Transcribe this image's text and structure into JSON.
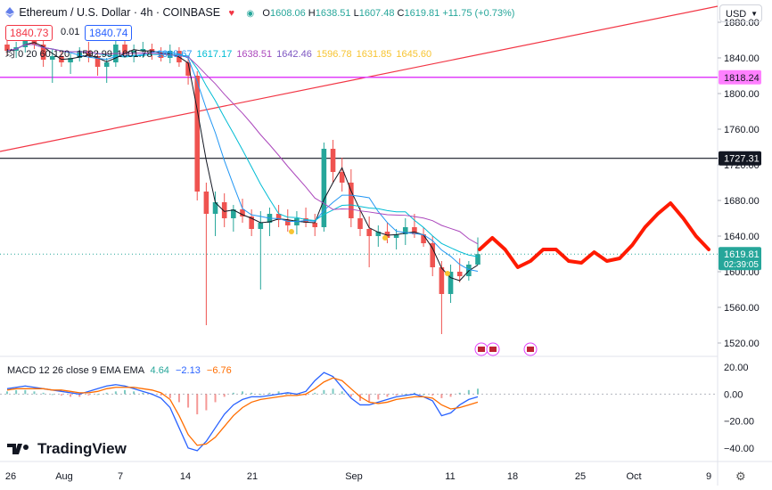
{
  "header": {
    "symbol_title": "Ethereum / U.S. Dollar · 4h · COINBASE",
    "open_label": "O",
    "open": "1608.06",
    "high_label": "H",
    "high": "1638.51",
    "low_label": "L",
    "low": "1607.48",
    "close_label": "C",
    "close": "1619.81",
    "change": "+11.75 (+0.73%)",
    "sell_price": "1840.73",
    "spread": "0.01",
    "buy_price": "1840.74",
    "currency": "USD"
  },
  "ma_legend": {
    "prefix": "均",
    "params": "0 20 60 120",
    "values": [
      "1592.99",
      "1601.78",
      "1618.67",
      "1617.17",
      "1638.51",
      "1642.46",
      "1596.78",
      "1631.85",
      "1645.60"
    ],
    "colors": [
      "#131722",
      "#131722",
      "#2196f3",
      "#00bcd4",
      "#ab47bc",
      "#7e57c2",
      "#f7c431",
      "#f7c431",
      "#f7c431"
    ]
  },
  "macd_legend": {
    "title": "MACD 12 26 close 9 EMA EMA",
    "hist": "4.64",
    "macd": "−2.13",
    "signal": "−6.76"
  },
  "watermark": "TradingView",
  "price_axis": {
    "ticks": [
      "1880.00",
      "1840.00",
      "1800.00",
      "1760.00",
      "1720.00",
      "1680.00",
      "1640.00",
      "1600.00",
      "1560.00",
      "1520.00"
    ],
    "tag_pink": "1818.24",
    "tag_black": "1727.31",
    "tag_last": "1619.81",
    "tag_countdown": "02:39:05"
  },
  "macd_axis": {
    "ticks": [
      "20.00",
      "0.00",
      "−20.00",
      "−40.00"
    ]
  },
  "time_axis": {
    "ticks": [
      "26",
      "Aug",
      "7",
      "14",
      "21",
      "Sep",
      "11",
      "18",
      "25",
      "Oct",
      "9"
    ]
  },
  "colors": {
    "up": "#26a69a",
    "down": "#ef5350",
    "pink_line": "#e040fb",
    "trend_line": "#f23645",
    "forecast": "#ff1a00",
    "macd_line": "#2962ff",
    "signal_line": "#ff6d00"
  },
  "chart_data": {
    "type": "candlestick",
    "symbol": "ETHUSD",
    "timeframe": "4h",
    "ylim": [
      1505,
      1905
    ],
    "candles_ohlc": [
      [
        1855,
        1862,
        1843,
        1848
      ],
      [
        1848,
        1858,
        1840,
        1852
      ],
      [
        1852,
        1870,
        1846,
        1865
      ],
      [
        1865,
        1868,
        1850,
        1855
      ],
      [
        1855,
        1862,
        1830,
        1838
      ],
      [
        1838,
        1850,
        1812,
        1842
      ],
      [
        1842,
        1848,
        1830,
        1835
      ],
      [
        1835,
        1845,
        1822,
        1840
      ],
      [
        1840,
        1852,
        1836,
        1848
      ],
      [
        1848,
        1858,
        1835,
        1842
      ],
      [
        1842,
        1848,
        1820,
        1830
      ],
      [
        1830,
        1840,
        1812,
        1835
      ],
      [
        1835,
        1860,
        1830,
        1855
      ],
      [
        1855,
        1866,
        1840,
        1845
      ],
      [
        1845,
        1855,
        1835,
        1848
      ],
      [
        1848,
        1858,
        1840,
        1850
      ],
      [
        1850,
        1856,
        1838,
        1846
      ],
      [
        1846,
        1852,
        1836,
        1840
      ],
      [
        1840,
        1855,
        1834,
        1848
      ],
      [
        1848,
        1852,
        1830,
        1835
      ],
      [
        1835,
        1842,
        1810,
        1820
      ],
      [
        1820,
        1825,
        1680,
        1690
      ],
      [
        1690,
        1700,
        1540,
        1665
      ],
      [
        1665,
        1690,
        1640,
        1678
      ],
      [
        1678,
        1688,
        1650,
        1660
      ],
      [
        1660,
        1675,
        1645,
        1670
      ],
      [
        1670,
        1682,
        1655,
        1662
      ],
      [
        1662,
        1670,
        1640,
        1648
      ],
      [
        1648,
        1668,
        1580,
        1655
      ],
      [
        1655,
        1672,
        1640,
        1665
      ],
      [
        1665,
        1675,
        1650,
        1658
      ],
      [
        1658,
        1670,
        1645,
        1652
      ],
      [
        1652,
        1668,
        1642,
        1660
      ],
      [
        1660,
        1672,
        1650,
        1655
      ],
      [
        1655,
        1665,
        1640,
        1650
      ],
      [
        1650,
        1745,
        1645,
        1738
      ],
      [
        1738,
        1748,
        1700,
        1712
      ],
      [
        1712,
        1728,
        1690,
        1700
      ],
      [
        1700,
        1715,
        1650,
        1660
      ],
      [
        1660,
        1672,
        1640,
        1648
      ],
      [
        1648,
        1662,
        1605,
        1640
      ],
      [
        1640,
        1652,
        1628,
        1645
      ],
      [
        1645,
        1655,
        1632,
        1638
      ],
      [
        1638,
        1648,
        1625,
        1642
      ],
      [
        1642,
        1660,
        1630,
        1650
      ],
      [
        1650,
        1665,
        1638,
        1642
      ],
      [
        1642,
        1650,
        1628,
        1632
      ],
      [
        1632,
        1640,
        1595,
        1605
      ],
      [
        1605,
        1612,
        1530,
        1575
      ],
      [
        1575,
        1608,
        1565,
        1600
      ],
      [
        1600,
        1615,
        1588,
        1595
      ],
      [
        1595,
        1612,
        1590,
        1608
      ],
      [
        1608,
        1638.51,
        1607.48,
        1619.81
      ]
    ],
    "ma_lines": {
      "ma20_colors": "#131722",
      "ma60_color": "#2196f3",
      "ma120_color": "#ab47bc"
    },
    "horizontal_levels": [
      1818.24,
      1727.31
    ],
    "last_price": 1619.81,
    "forecast_path_note": "hand-drawn red projection after last candle",
    "forecast_values": [
      1625,
      1638,
      1625,
      1605,
      1612,
      1625,
      1625,
      1612,
      1610,
      1622,
      1612,
      1615,
      1630,
      1650,
      1665,
      1677,
      1660,
      1640,
      1625
    ],
    "macd": {
      "ylim": [
        -48,
        26
      ],
      "hist": [
        2,
        3,
        3,
        2,
        1,
        0,
        -1,
        -2,
        -2,
        -1,
        0,
        1,
        2,
        3,
        2,
        1,
        0,
        -1,
        -3,
        -6,
        -10,
        -15,
        -12,
        -6,
        -2,
        1,
        2,
        1,
        0,
        1,
        2,
        1,
        0,
        -1,
        1,
        3,
        4,
        2,
        -2,
        -5,
        -6,
        -4,
        -2,
        -1,
        0,
        1,
        0,
        -1,
        -3,
        -2,
        1,
        3,
        4
      ],
      "macd_line": [
        4,
        5,
        6,
        5,
        4,
        3,
        2,
        1,
        0,
        2,
        4,
        6,
        7,
        6,
        4,
        2,
        0,
        -3,
        -10,
        -25,
        -40,
        -42,
        -35,
        -25,
        -15,
        -8,
        -4,
        -2,
        -2,
        -1,
        0,
        1,
        0,
        2,
        10,
        16,
        13,
        5,
        -3,
        -8,
        -8,
        -6,
        -4,
        -2,
        -1,
        0,
        -2,
        -5,
        -16,
        -14,
        -8,
        -4,
        -2
      ],
      "signal_line": [
        3,
        4,
        4,
        4,
        4,
        3,
        3,
        2,
        1,
        1,
        2,
        4,
        5,
        5,
        5,
        4,
        3,
        1,
        -4,
        -16,
        -30,
        -38,
        -37,
        -32,
        -24,
        -16,
        -10,
        -6,
        -4,
        -3,
        -2,
        -1,
        -1,
        0,
        4,
        9,
        12,
        10,
        4,
        -2,
        -6,
        -7,
        -6,
        -4,
        -3,
        -2,
        -2,
        -3,
        -8,
        -11,
        -10,
        -8,
        -6
      ]
    }
  }
}
